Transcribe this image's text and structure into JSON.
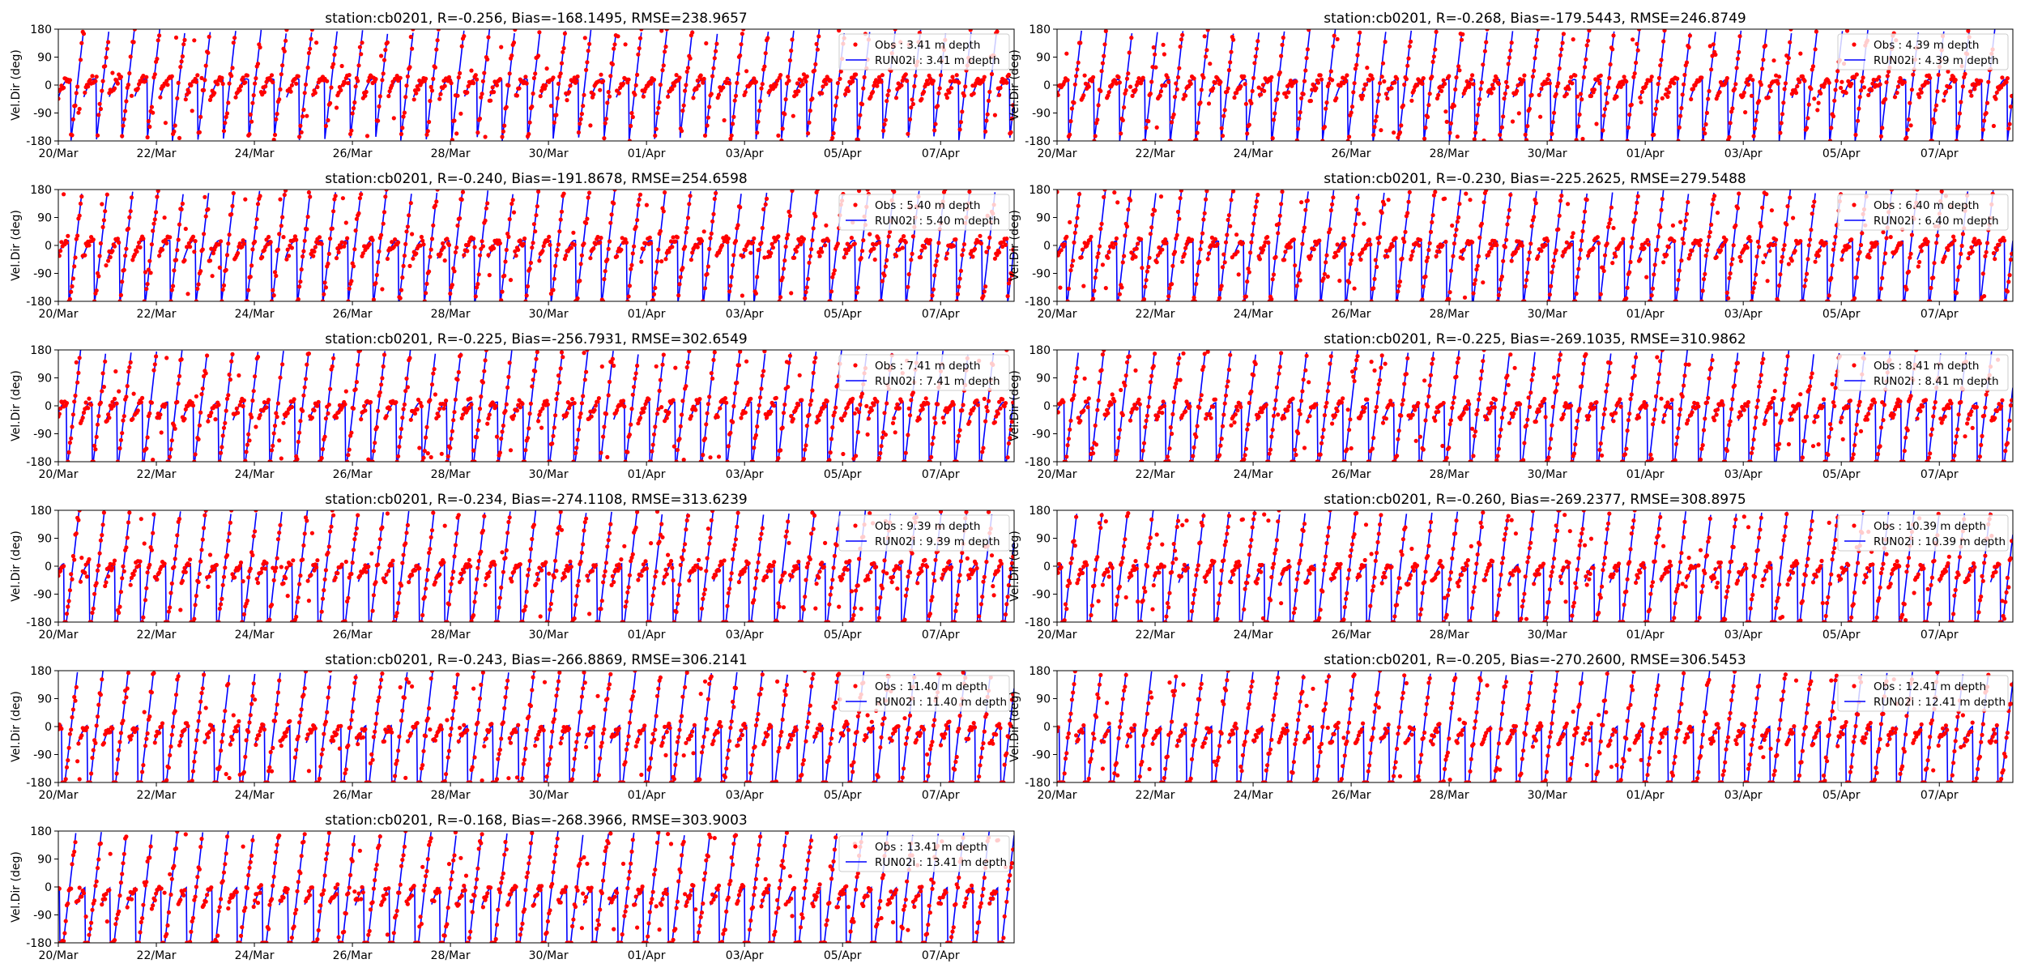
{
  "figure": {
    "ylabel": "Vel.Dir (deg)",
    "yticks": [
      -180,
      -90,
      0,
      90,
      180
    ],
    "xticks": [
      "20/Mar",
      "22/Mar",
      "24/Mar",
      "26/Mar",
      "28/Mar",
      "30/Mar",
      "01/Apr",
      "03/Apr",
      "05/Apr",
      "07/Apr"
    ]
  },
  "colors": {
    "obs": "#ff0000",
    "model": "#0000ff"
  },
  "chart_data": [
    {
      "type": "line",
      "title": "station:cb0201, R=-0.256, Bias=-168.1495, RMSE=238.9657",
      "ylabel": "Vel.Dir (deg)",
      "ylim": [
        -180,
        180
      ],
      "xlim": [
        "2021-03-20",
        "2021-04-08 12:00"
      ],
      "legend_position": "top-right",
      "series": [
        {
          "name": "Obs : 3.41 m depth",
          "style": "dots",
          "values_note": ""
        },
        {
          "name": "RUN02i : 3.41 m depth",
          "style": "line"
        }
      ]
    },
    {
      "type": "line",
      "title": "station:cb0201, R=-0.268, Bias=-179.5443, RMSE=246.8749",
      "ylabel": "Vel.Dir (deg)",
      "ylim": [
        -180,
        180
      ],
      "xlim": [
        "2021-03-20",
        "2021-04-08 12:00"
      ],
      "legend_position": "top-right",
      "series": [
        {
          "name": "Obs : 4.39 m depth",
          "style": "dots"
        },
        {
          "name": "RUN02i : 4.39 m depth",
          "style": "line"
        }
      ]
    },
    {
      "type": "line",
      "title": "station:cb0201, R=-0.240, Bias=-191.8678, RMSE=254.6598",
      "ylabel": "Vel.Dir (deg)",
      "ylim": [
        -180,
        180
      ],
      "xlim": [
        "2021-03-20",
        "2021-04-08 12:00"
      ],
      "legend_position": "top-right",
      "series": [
        {
          "name": "Obs : 5.40 m depth",
          "style": "dots"
        },
        {
          "name": "RUN02i : 5.40 m depth",
          "style": "line"
        }
      ]
    },
    {
      "type": "line",
      "title": "station:cb0201, R=-0.230, Bias=-225.2625, RMSE=279.5488",
      "ylabel": "Vel.Dir (deg)",
      "ylim": [
        -180,
        180
      ],
      "xlim": [
        "2021-03-20",
        "2021-04-08 12:00"
      ],
      "legend_position": "top-right",
      "series": [
        {
          "name": "Obs : 6.40 m depth",
          "style": "dots"
        },
        {
          "name": "RUN02i : 6.40 m depth",
          "style": "line"
        }
      ]
    },
    {
      "type": "line",
      "title": "station:cb0201, R=-0.225, Bias=-256.7931, RMSE=302.6549",
      "ylabel": "Vel.Dir (deg)",
      "ylim": [
        -180,
        180
      ],
      "xlim": [
        "2021-03-20",
        "2021-04-08 12:00"
      ],
      "legend_position": "top-right",
      "series": [
        {
          "name": "Obs : 7.41 m depth",
          "style": "dots"
        },
        {
          "name": "RUN02i : 7.41 m depth",
          "style": "line"
        }
      ]
    },
    {
      "type": "line",
      "title": "station:cb0201, R=-0.225, Bias=-269.1035, RMSE=310.9862",
      "ylabel": "Vel.Dir (deg)",
      "ylim": [
        -180,
        180
      ],
      "xlim": [
        "2021-03-20",
        "2021-04-08 12:00"
      ],
      "legend_position": "top-right",
      "series": [
        {
          "name": "Obs : 8.41 m depth",
          "style": "dots"
        },
        {
          "name": "RUN02i : 8.41 m depth",
          "style": "line"
        }
      ]
    },
    {
      "type": "line",
      "title": "station:cb0201, R=-0.234, Bias=-274.1108, RMSE=313.6239",
      "ylabel": "Vel.Dir (deg)",
      "ylim": [
        -180,
        180
      ],
      "xlim": [
        "2021-03-20",
        "2021-04-08 12:00"
      ],
      "legend_position": "top-right",
      "series": [
        {
          "name": "Obs : 9.39 m depth",
          "style": "dots"
        },
        {
          "name": "RUN02i : 9.39 m depth",
          "style": "line"
        }
      ]
    },
    {
      "type": "line",
      "title": "station:cb0201, R=-0.260, Bias=-269.2377, RMSE=308.8975",
      "ylabel": "Vel.Dir (deg)",
      "ylim": [
        -180,
        180
      ],
      "xlim": [
        "2021-03-20",
        "2021-04-08 12:00"
      ],
      "legend_position": "top-right",
      "series": [
        {
          "name": "Obs : 10.39 m depth",
          "style": "dots"
        },
        {
          "name": "RUN02i : 10.39 m depth",
          "style": "line"
        }
      ]
    },
    {
      "type": "line",
      "title": "station:cb0201, R=-0.243, Bias=-266.8869, RMSE=306.2141",
      "ylabel": "Vel.Dir (deg)",
      "ylim": [
        -180,
        180
      ],
      "xlim": [
        "2021-03-20",
        "2021-04-08 12:00"
      ],
      "legend_position": "top-right",
      "series": [
        {
          "name": "Obs : 11.40 m depth",
          "style": "dots"
        },
        {
          "name": "RUN02i : 11.40 m depth",
          "style": "line"
        }
      ]
    },
    {
      "type": "line",
      "title": "station:cb0201, R=-0.205, Bias=-270.2600, RMSE=306.5453",
      "ylabel": "Vel.Dir (deg)",
      "ylim": [
        -180,
        180
      ],
      "xlim": [
        "2021-03-20",
        "2021-04-08 12:00"
      ],
      "legend_position": "top-right",
      "series": [
        {
          "name": "Obs : 12.41 m depth",
          "style": "dots"
        },
        {
          "name": "RUN02i : 12.41 m depth",
          "style": "line"
        }
      ]
    },
    {
      "type": "line",
      "title": "station:cb0201, R=-0.168, Bias=-268.3966, RMSE=303.9003",
      "ylabel": "Vel.Dir (deg)",
      "ylim": [
        -180,
        180
      ],
      "xlim": [
        "2021-03-20",
        "2021-04-08 12:00"
      ],
      "legend_position": "top-right",
      "series": [
        {
          "name": "Obs : 13.41 m depth",
          "style": "dots"
        },
        {
          "name": "RUN02i : 13.41 m depth",
          "style": "line"
        }
      ]
    }
  ]
}
